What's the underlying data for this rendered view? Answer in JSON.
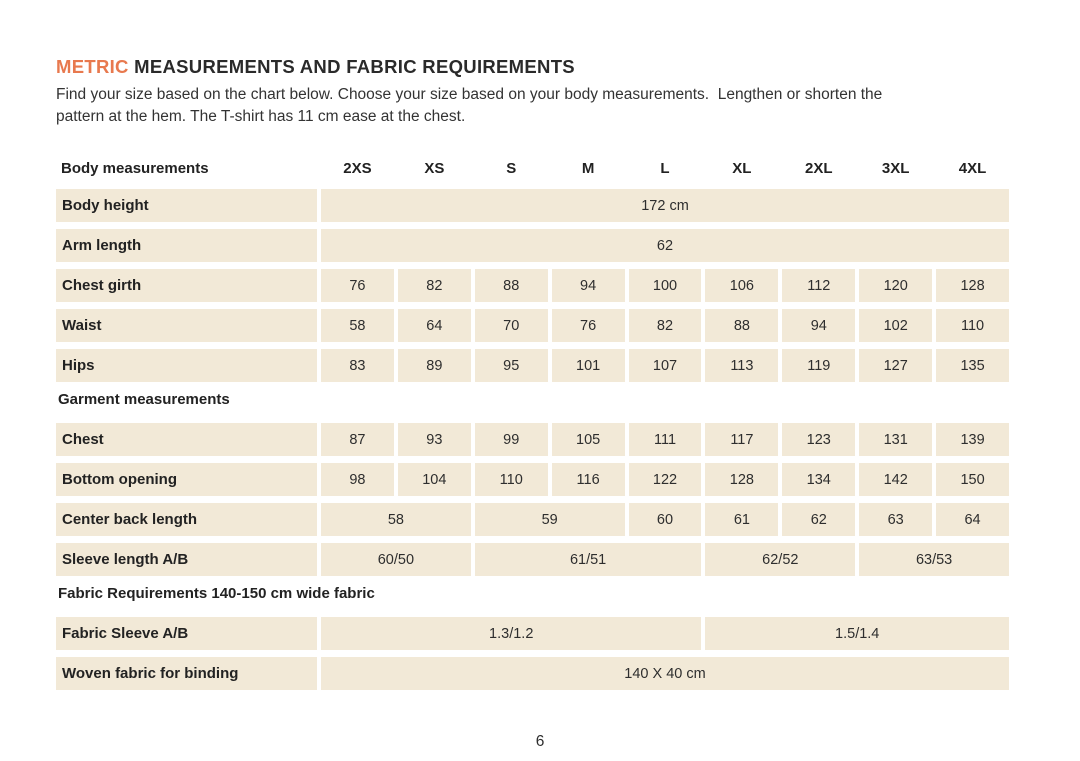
{
  "colors": {
    "accent": "#E8794E",
    "cell_background": "#F2E9D7",
    "text": "#2B2B2B"
  },
  "header": {
    "title_accent": "METRIC",
    "title_rest": " MEASUREMENTS AND FABRIC REQUIREMENTS",
    "intro_line1": "Find your size based on the chart below. Choose your size based on your body measurements.  Lengthen or shorten the",
    "intro_line2": "pattern at the hem. The T-shirt has 11 cm ease at the chest."
  },
  "table": {
    "header": {
      "label": "Body measurements",
      "sizes": [
        "2XS",
        "XS",
        "S",
        "M",
        "L",
        "XL",
        "2XL",
        "3XL",
        "4XL"
      ]
    },
    "rows": [
      {
        "type": "data",
        "label": "Body height",
        "cells": [
          {
            "v": "172 cm",
            "span": 9
          }
        ]
      },
      {
        "type": "data",
        "label": "Arm length",
        "cells": [
          {
            "v": "62",
            "span": 9
          }
        ]
      },
      {
        "type": "data",
        "label": "Chest girth",
        "cells": [
          {
            "v": "76"
          },
          {
            "v": "82"
          },
          {
            "v": "88"
          },
          {
            "v": "94"
          },
          {
            "v": "100"
          },
          {
            "v": "106"
          },
          {
            "v": "112"
          },
          {
            "v": "120"
          },
          {
            "v": "128"
          }
        ]
      },
      {
        "type": "data",
        "label": "Waist",
        "cells": [
          {
            "v": "58"
          },
          {
            "v": "64"
          },
          {
            "v": "70"
          },
          {
            "v": "76"
          },
          {
            "v": "82"
          },
          {
            "v": "88"
          },
          {
            "v": "94"
          },
          {
            "v": "102"
          },
          {
            "v": "110"
          }
        ]
      },
      {
        "type": "data",
        "label": "Hips",
        "cells": [
          {
            "v": "83"
          },
          {
            "v": "89"
          },
          {
            "v": "95"
          },
          {
            "v": "101"
          },
          {
            "v": "107"
          },
          {
            "v": "113"
          },
          {
            "v": "119"
          },
          {
            "v": "127"
          },
          {
            "v": "135"
          }
        ]
      },
      {
        "type": "section",
        "label": "Garment measurements"
      },
      {
        "type": "data",
        "label": "Chest",
        "cells": [
          {
            "v": "87"
          },
          {
            "v": "93"
          },
          {
            "v": "99"
          },
          {
            "v": "105"
          },
          {
            "v": "111"
          },
          {
            "v": "117"
          },
          {
            "v": "123"
          },
          {
            "v": "131"
          },
          {
            "v": "139"
          }
        ]
      },
      {
        "type": "data",
        "label": "Bottom opening",
        "cells": [
          {
            "v": "98"
          },
          {
            "v": "104"
          },
          {
            "v": "110"
          },
          {
            "v": "116"
          },
          {
            "v": "122"
          },
          {
            "v": "128"
          },
          {
            "v": "134"
          },
          {
            "v": "142"
          },
          {
            "v": "150"
          }
        ]
      },
      {
        "type": "data",
        "label": "Center back length",
        "cells": [
          {
            "v": "58",
            "span": 2
          },
          {
            "v": "59",
            "span": 2
          },
          {
            "v": "60"
          },
          {
            "v": "61"
          },
          {
            "v": "62"
          },
          {
            "v": "63"
          },
          {
            "v": "64"
          }
        ]
      },
      {
        "type": "data",
        "label": "Sleeve length A/B",
        "cells": [
          {
            "v": "60/50",
            "span": 2
          },
          {
            "v": "61/51",
            "span": 3
          },
          {
            "v": "62/52",
            "span": 2
          },
          {
            "v": "63/53",
            "span": 2
          }
        ]
      },
      {
        "type": "section",
        "label": "Fabric Requirements 140-150 cm wide fabric"
      },
      {
        "type": "data",
        "label": "Fabric Sleeve A/B",
        "cells": [
          {
            "v": "1.3/1.2",
            "span": 5
          },
          {
            "v": "1.5/1.4",
            "span": 4
          }
        ]
      },
      {
        "type": "data",
        "label": "Woven fabric for binding",
        "cells": [
          {
            "v": "140 X 40 cm",
            "span": 9
          }
        ]
      }
    ]
  },
  "footer": {
    "page_number": "6"
  }
}
